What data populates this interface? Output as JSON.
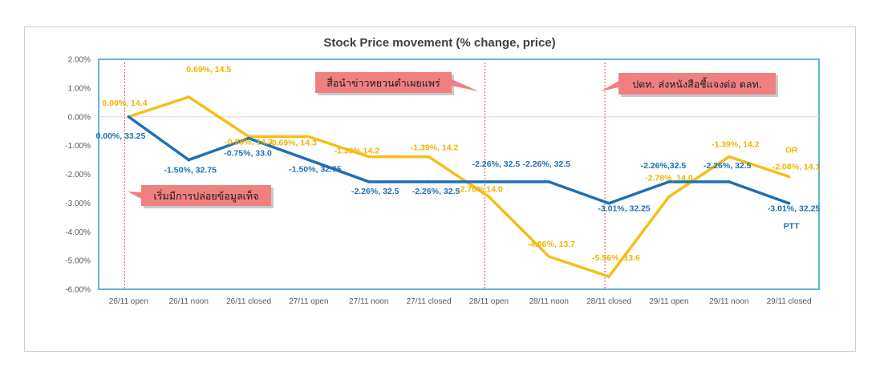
{
  "chart_data": {
    "type": "line",
    "title": "Stock Price movement (% change, price)",
    "categories": [
      "26/11 open",
      "26/11 noon",
      "26/11 closed",
      "27/11 open",
      "27/11 noon",
      "27/11 closed",
      "28/11 open",
      "28/11 noon",
      "28/11 closed",
      "29/11 open",
      "29/11 noon",
      "29/11 closed"
    ],
    "y_ticks": [
      "2.00%",
      "1.00%",
      "0.00%",
      "-1.00%",
      "-2.00%",
      "-3.00%",
      "-4.00%",
      "-5.00%",
      "-6.00%"
    ],
    "ylim": [
      -6,
      2
    ],
    "series": [
      {
        "name": "PTT",
        "color": "#1f6fb5",
        "values": [
          0.0,
          -1.5,
          -0.75,
          -1.5,
          -2.26,
          -2.26,
          -2.26,
          -2.26,
          -3.01,
          -2.26,
          -2.26,
          -3.01
        ],
        "labels": [
          "0.00%, 33.25",
          "-1.50%, 32.75",
          "-0.75%, 33.0",
          "-1.50%, 32.75",
          "-2.26%, 32.5",
          "-2.26%, 32.5",
          "-2.26%, 32.5",
          "-2.26%, 32.5",
          "-3.01%, 32.25",
          "-2.26%,32.5",
          "-2.26%, 32.5",
          "-3.01%, 32.25"
        ]
      },
      {
        "name": "OR",
        "color": "#f5bf19",
        "values": [
          0.0,
          0.69,
          -0.69,
          -0.69,
          -1.39,
          -1.39,
          -2.78,
          -4.86,
          -5.56,
          -2.78,
          -1.39,
          -2.08
        ],
        "labels": [
          "0.00%, 14.4",
          "0.69%, 14.5",
          "-0.69%, 14.3",
          "-0.69%, 14.3",
          "-1.39%,14.2",
          "-1.39%, 14.2",
          "-2.78%,14.0",
          "-4.86%, 13.7",
          "-5.56%, 13.6",
          "-2.78%, 14.0",
          "-1.39%, 14.2",
          "-2.08%, 14.1"
        ]
      }
    ],
    "event_lines": [
      {
        "at": "26/11 open"
      },
      {
        "at": "28/11 open"
      },
      {
        "at": "28/11 closed"
      }
    ],
    "annotations": [
      {
        "text": "เริ่มมีการปล่อยข้อมูลเท็จ"
      },
      {
        "text": "สื่อนำข่าวหยวนดำเผยแพร่"
      },
      {
        "text": "ปตท. ส่งหนังสือชี้แจงต่อ ตลท."
      }
    ],
    "colors": {
      "pane_border": "#2e9bd6",
      "event_line": "#e05050",
      "annotation_fill": "#f08080"
    }
  }
}
